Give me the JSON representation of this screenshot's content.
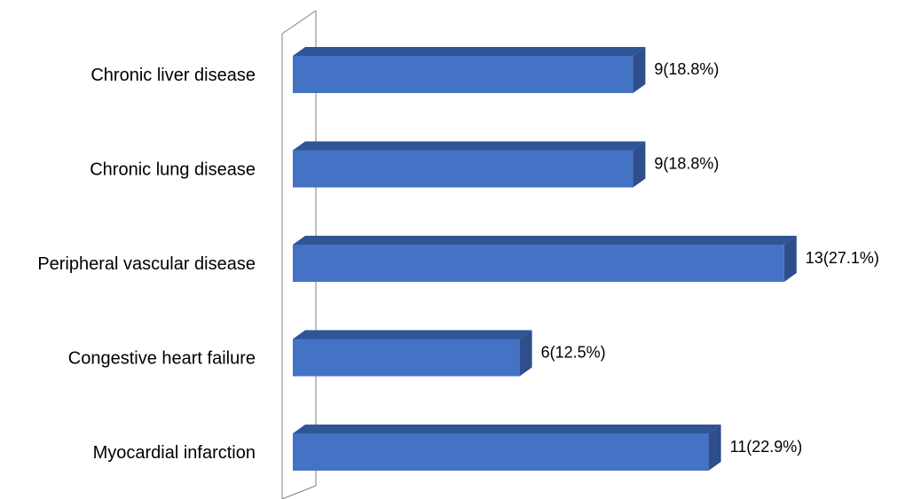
{
  "chart_data": {
    "type": "bar",
    "orientation": "horizontal",
    "style": "3d",
    "categories": [
      "Chronic liver disease",
      "Chronic lung disease",
      "Peripheral vascular disease",
      "Congestive heart failure",
      "Myocardial infarction"
    ],
    "values": [
      9,
      9,
      13,
      6,
      11
    ],
    "data_labels": [
      "9(18.8%)",
      "9(18.8%)",
      "13(27.1%)",
      "6(12.5%)",
      "11(22.9%)"
    ],
    "title": "",
    "xlabel": "",
    "ylabel": "",
    "xlim": [
      0,
      13
    ],
    "grid": false,
    "legend": "none",
    "colors": {
      "bar_front": "#4472C4",
      "bar_top": "#2F5597",
      "bar_side": "#2E4E8C",
      "axis_wall": "#7F7F7F"
    }
  }
}
